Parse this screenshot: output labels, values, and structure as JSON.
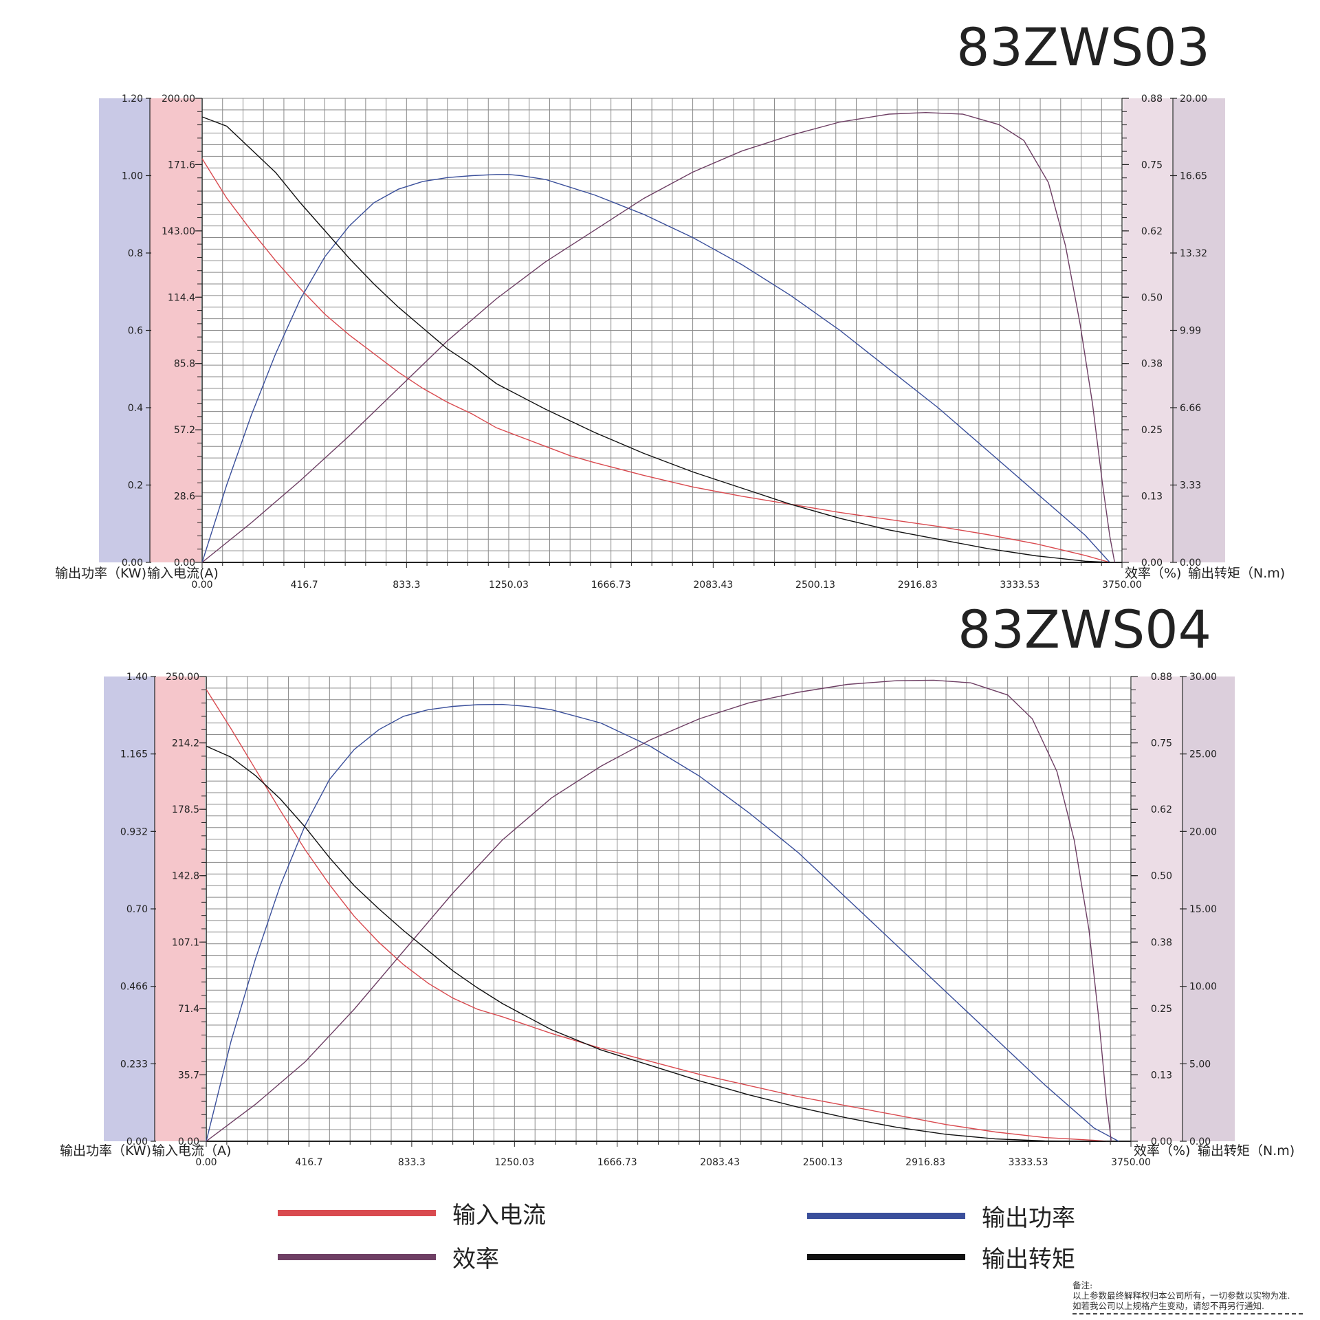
{
  "legend": {
    "current": "输入电流",
    "power": "输出功率",
    "efficiency": "效率",
    "torque": "输出转矩"
  },
  "colors": {
    "current": "#d94a4f",
    "power": "#3a4f9b",
    "efficiency": "#6e3f64",
    "torque": "#111111",
    "power_band": "#c9c9e6",
    "current_band": "#f5c6cb",
    "efficiency_band": "#ecdde6",
    "torque_band": "#dccfdc",
    "grid": "#8a8a8a"
  },
  "footnote": {
    "heading": "备注:",
    "line1": "以上参数最终解释权归本公司所有，一切参数以实物为准.",
    "line2": "如若我公司以上规格产生变动，请恕不再另行通知."
  },
  "chart_data": [
    {
      "type": "line",
      "title": "83ZWS03",
      "x_ticks": [
        "0.00",
        "416.7",
        "833.3",
        "1250.03",
        "1666.73",
        "2083.43",
        "2500.13",
        "2916.83",
        "3333.53",
        "3750.00"
      ],
      "xlim": [
        0,
        3750
      ],
      "axes": {
        "power": {
          "label": "输出功率（KW)",
          "ticks": [
            "0.00",
            "0.2",
            "0.4",
            "0.6",
            "0.8",
            "1.00",
            "1.20"
          ],
          "range": [
            0,
            1.2
          ]
        },
        "current": {
          "label": "输入电流(A)",
          "ticks": [
            "0.00",
            "28.6",
            "57.2",
            "85.8",
            "114.4",
            "143.00",
            "171.6",
            "200.00"
          ],
          "range": [
            0,
            200
          ]
        },
        "efficiency": {
          "label": "效率（%)",
          "ticks": [
            "0.00",
            "0.13",
            "0.25",
            "0.38",
            "0.50",
            "0.62",
            "0.75",
            "0.88"
          ],
          "range": [
            0,
            0.88
          ]
        },
        "torque": {
          "label": "输出转矩（N.m)",
          "ticks": [
            "0.00",
            "3.33",
            "6.66",
            "9.99",
            "13.32",
            "16.65",
            "20.00"
          ],
          "range": [
            0,
            20
          ]
        }
      },
      "series": [
        {
          "name": "输入电流",
          "axis": "current",
          "x": [
            0,
            100,
            200,
            300,
            400,
            500,
            600,
            700,
            800,
            900,
            1000,
            1100,
            1200,
            1300,
            1400,
            1500,
            1600,
            1800,
            2000,
            2200,
            2400,
            2600,
            2800,
            3000,
            3200,
            3400,
            3600,
            3700
          ],
          "y": [
            174,
            157,
            143,
            130,
            118,
            107,
            98,
            90,
            82,
            75,
            69,
            64,
            58,
            54,
            50,
            46,
            43,
            37.5,
            32.5,
            28.5,
            25,
            21.5,
            18.5,
            15.5,
            12,
            8,
            3,
            0
          ]
        },
        {
          "name": "输出功率",
          "axis": "power",
          "x": [
            0,
            100,
            200,
            300,
            400,
            500,
            600,
            700,
            800,
            900,
            1000,
            1100,
            1200,
            1250,
            1300,
            1400,
            1600,
            1800,
            2000,
            2200,
            2400,
            2600,
            2800,
            3000,
            3200,
            3400,
            3600,
            3700
          ],
          "y": [
            0,
            0.2,
            0.38,
            0.54,
            0.68,
            0.79,
            0.87,
            0.93,
            0.965,
            0.985,
            0.995,
            1.0,
            1.003,
            1.003,
            1.0,
            0.99,
            0.95,
            0.9,
            0.84,
            0.77,
            0.69,
            0.6,
            0.5,
            0.4,
            0.29,
            0.18,
            0.07,
            0
          ]
        },
        {
          "name": "效率",
          "axis": "efficiency",
          "x": [
            0,
            200,
            400,
            600,
            800,
            1000,
            1200,
            1400,
            1600,
            1800,
            2000,
            2200,
            2400,
            2600,
            2800,
            2950,
            3100,
            3250,
            3350,
            3450,
            3520,
            3580,
            3630,
            3670,
            3700,
            3720
          ],
          "y": [
            0,
            0.075,
            0.155,
            0.24,
            0.33,
            0.42,
            0.5,
            0.57,
            0.63,
            0.69,
            0.74,
            0.78,
            0.81,
            0.835,
            0.85,
            0.853,
            0.85,
            0.83,
            0.8,
            0.72,
            0.6,
            0.45,
            0.3,
            0.15,
            0.05,
            0
          ]
        },
        {
          "name": "输出转矩",
          "axis": "torque",
          "x": [
            0,
            100,
            200,
            300,
            400,
            500,
            600,
            700,
            800,
            900,
            1000,
            1100,
            1200,
            1400,
            1600,
            1800,
            2000,
            2200,
            2400,
            2600,
            2800,
            3000,
            3200,
            3400,
            3600,
            3700
          ],
          "y": [
            19.2,
            18.8,
            17.8,
            16.8,
            15.5,
            14.3,
            13.1,
            12.0,
            11.0,
            10.1,
            9.2,
            8.5,
            7.7,
            6.6,
            5.6,
            4.7,
            3.9,
            3.2,
            2.5,
            1.9,
            1.4,
            1.0,
            0.6,
            0.28,
            0.05,
            0
          ]
        }
      ]
    },
    {
      "type": "line",
      "title": "83ZWS04",
      "x_ticks": [
        "0.00",
        "416.7",
        "833.3",
        "1250.03",
        "1666.73",
        "2083.43",
        "2500.13",
        "2916.83",
        "3333.53",
        "3750.00"
      ],
      "xlim": [
        0,
        3750
      ],
      "axes": {
        "power": {
          "label": "输出功率（KW)",
          "ticks": [
            "0.00",
            "0.233",
            "0.466",
            "0.70",
            "0.932",
            "1.165",
            "1.40"
          ],
          "range": [
            0,
            1.4
          ]
        },
        "current": {
          "label": "输入电流（A)",
          "ticks": [
            "0.00",
            "35.7",
            "71.4",
            "107.1",
            "142.8",
            "178.5",
            "214.2",
            "250.00"
          ],
          "range": [
            0,
            250
          ]
        },
        "efficiency": {
          "label": "效率（%)",
          "ticks": [
            "0.00",
            "0.13",
            "0.25",
            "0.38",
            "0.50",
            "0.62",
            "0.75",
            "0.88"
          ],
          "range": [
            0,
            0.88
          ]
        },
        "torque": {
          "label": "输出转矩（N.m)",
          "ticks": [
            "0.00",
            "5.00",
            "10.00",
            "15.00",
            "20.00",
            "25.00",
            "30.00"
          ],
          "range": [
            0,
            30
          ]
        }
      },
      "series": [
        {
          "name": "输入电流",
          "axis": "current",
          "x": [
            0,
            100,
            200,
            300,
            400,
            500,
            600,
            700,
            800,
            900,
            1000,
            1100,
            1200,
            1400,
            1600,
            1800,
            2000,
            2200,
            2400,
            2600,
            2800,
            3000,
            3200,
            3400,
            3600,
            3650
          ],
          "y": [
            243,
            222,
            200,
            178,
            157,
            138,
            121,
            107,
            95,
            85,
            77,
            71,
            67,
            58,
            50,
            43,
            36,
            30,
            24,
            19,
            14,
            9,
            5,
            2,
            0.5,
            0
          ]
        },
        {
          "name": "输出功率",
          "axis": "power",
          "x": [
            0,
            100,
            200,
            300,
            400,
            500,
            600,
            700,
            800,
            900,
            1000,
            1100,
            1200,
            1300,
            1400,
            1600,
            1800,
            2000,
            2200,
            2400,
            2600,
            2800,
            3000,
            3200,
            3400,
            3600,
            3700
          ],
          "y": [
            0,
            0.3,
            0.55,
            0.77,
            0.95,
            1.09,
            1.18,
            1.24,
            1.28,
            1.3,
            1.31,
            1.315,
            1.316,
            1.31,
            1.3,
            1.26,
            1.19,
            1.1,
            0.99,
            0.87,
            0.73,
            0.59,
            0.45,
            0.31,
            0.17,
            0.04,
            0
          ]
        },
        {
          "name": "效率",
          "axis": "efficiency",
          "x": [
            0,
            200,
            400,
            600,
            800,
            1000,
            1200,
            1400,
            1600,
            1800,
            2000,
            2200,
            2400,
            2600,
            2800,
            2950,
            3100,
            3250,
            3350,
            3450,
            3520,
            3580,
            3620,
            3650,
            3670
          ],
          "y": [
            0,
            0.07,
            0.15,
            0.25,
            0.36,
            0.47,
            0.57,
            0.65,
            0.71,
            0.76,
            0.8,
            0.83,
            0.85,
            0.865,
            0.872,
            0.873,
            0.868,
            0.845,
            0.8,
            0.7,
            0.57,
            0.4,
            0.23,
            0.08,
            0
          ]
        },
        {
          "name": "输出转矩",
          "axis": "torque",
          "x": [
            0,
            100,
            200,
            300,
            400,
            500,
            600,
            700,
            800,
            900,
            1000,
            1100,
            1200,
            1400,
            1600,
            1800,
            2000,
            2200,
            2400,
            2600,
            2800,
            3000,
            3200,
            3400,
            3600,
            3650
          ],
          "y": [
            25.5,
            24.8,
            23.6,
            22.1,
            20.3,
            18.3,
            16.5,
            15.0,
            13.6,
            12.3,
            11.0,
            9.9,
            8.9,
            7.2,
            5.9,
            4.9,
            3.9,
            3.0,
            2.2,
            1.5,
            0.9,
            0.45,
            0.15,
            0.02,
            0,
            0
          ]
        }
      ]
    }
  ]
}
